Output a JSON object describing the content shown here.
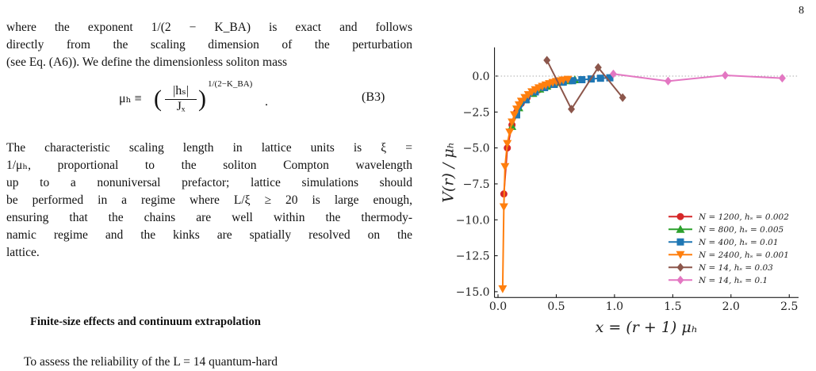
{
  "page_number": "8",
  "paragraph_1": [
    "where the exponent 1/(2 − K_BA) is exact and follows",
    "directly from the scaling dimension of the perturbation",
    "(see Eq. (A6)). We define the dimensionless soliton mass"
  ],
  "equation": {
    "lhs": "μₕ ≡",
    "numerator": "|hₛ|",
    "denominator": "Jₓ",
    "exponent": "1/(2−K_BA)",
    "tag": "(B3)"
  },
  "paragraph_2": [
    "The characteristic scaling length in lattice units is ξ =",
    "1/μₕ, proportional to the soliton Compton wavelength",
    "up to a nonuniversal prefactor; lattice simulations should",
    "be performed in a regime where L/ξ ≥ 20 is large enough,",
    "ensuring that the chains are well within the thermody-",
    "namic regime and the kinks are spatially resolved on the",
    "lattice."
  ],
  "heading": "Finite-size effects and continuum extrapolation",
  "paragraph_3": [
    "To assess the reliability of the L = 14 quantum-hard"
  ],
  "chart_data": {
    "type": "line",
    "xlabel": "x = (r + 1) μₕ",
    "ylabel": "V(r) / μₕ",
    "xlim": [
      -0.03,
      2.58
    ],
    "ylim": [
      -15.4,
      2.0
    ],
    "xticks": [
      {
        "value": 0,
        "label": "0.0"
      },
      {
        "value": 0.5,
        "label": "0.5"
      },
      {
        "value": 1,
        "label": "1.0"
      },
      {
        "value": 1.5,
        "label": "1.5"
      },
      {
        "value": 2,
        "label": "2.0"
      },
      {
        "value": 2.5,
        "label": "2.5"
      }
    ],
    "yticks": [
      {
        "value": 0,
        "label": "0.0"
      },
      {
        "value": -2.5,
        "label": "−2.5"
      },
      {
        "value": -5,
        "label": "−5.0"
      },
      {
        "value": -7.5,
        "label": "−7.5"
      },
      {
        "value": -10,
        "label": "−10.0"
      },
      {
        "value": -12.5,
        "label": "−12.5"
      },
      {
        "value": -15,
        "label": "−15.0"
      }
    ],
    "reference_line": 0,
    "legend": "lower right",
    "series": [
      {
        "name": "N = 1200,  hₛ = 0.002",
        "color": "#d62728",
        "marker": "circle",
        "x": [
          0.05,
          0.08,
          0.12,
          0.16,
          0.2,
          0.25,
          0.3,
          0.35,
          0.4,
          0.45,
          0.5,
          0.55,
          0.6
        ],
        "values": [
          -8.2,
          -5.0,
          -3.4,
          -2.5,
          -1.9,
          -1.5,
          -1.2,
          -0.95,
          -0.75,
          -0.6,
          -0.48,
          -0.38,
          -0.3
        ]
      },
      {
        "name": "N = 800,  hₛ = 0.005",
        "color": "#2ca02c",
        "marker": "triangle-up",
        "x": [
          0.12,
          0.18,
          0.24,
          0.3,
          0.36,
          0.42,
          0.48,
          0.54,
          0.6,
          0.66
        ],
        "values": [
          -3.5,
          -2.2,
          -1.6,
          -1.2,
          -0.9,
          -0.7,
          -0.55,
          -0.42,
          -0.32,
          -0.25
        ]
      },
      {
        "name": "N = 400,  hₛ = 0.01",
        "color": "#1f77b4",
        "marker": "square",
        "x": [
          0.16,
          0.24,
          0.32,
          0.4,
          0.48,
          0.56,
          0.64,
          0.72,
          0.8,
          0.88,
          0.96
        ],
        "values": [
          -2.7,
          -1.65,
          -1.1,
          -0.8,
          -0.58,
          -0.42,
          -0.32,
          -0.25,
          -0.2,
          -0.15,
          -0.12
        ]
      },
      {
        "name": "N = 2400,  hₛ = 0.001",
        "color": "#ff7f0e",
        "marker": "triangle-down",
        "x": [
          0.04,
          0.05,
          0.06,
          0.08,
          0.1,
          0.12,
          0.14,
          0.16,
          0.18,
          0.2,
          0.23,
          0.26,
          0.29,
          0.32,
          0.35,
          0.38,
          0.41,
          0.44,
          0.47,
          0.5,
          0.53,
          0.56,
          0.6
        ],
        "values": [
          -14.8,
          -9.1,
          -6.3,
          -4.7,
          -3.9,
          -3.2,
          -2.7,
          -2.3,
          -2.0,
          -1.75,
          -1.5,
          -1.3,
          -1.1,
          -0.95,
          -0.82,
          -0.72,
          -0.62,
          -0.53,
          -0.45,
          -0.38,
          -0.33,
          -0.28,
          -0.23
        ]
      },
      {
        "name": "N = 14,  hₛ = 0.03",
        "color": "#8c564b",
        "marker": "diamond",
        "x": [
          0.42,
          0.63,
          0.86,
          1.07
        ],
        "values": [
          1.1,
          -2.3,
          0.6,
          -1.5
        ]
      },
      {
        "name": "N = 14,  hₛ = 0.1",
        "color": "#e377c2",
        "marker": "diamond",
        "x": [
          0.99,
          1.46,
          1.95,
          2.44
        ],
        "values": [
          0.15,
          -0.35,
          0.05,
          -0.15
        ]
      }
    ]
  }
}
